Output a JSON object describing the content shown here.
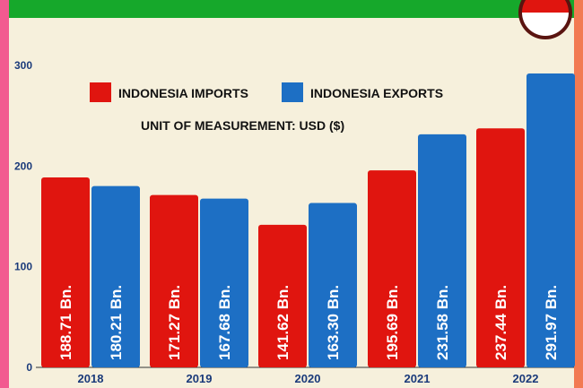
{
  "colors": {
    "imports": "#e0150f",
    "exports": "#1d6fc4",
    "banner": "#16a82b",
    "background": "#f6f0dc",
    "left_edge": "#f25a90",
    "right_edge": "#f27a52"
  },
  "legend": {
    "imports_label": "INDONESIA IMPORTS",
    "exports_label": "INDONESIA EXPORTS",
    "unit": "UNIT OF MEASUREMENT: USD ($)"
  },
  "chart_data": {
    "type": "bar",
    "title": "",
    "xlabel": "",
    "ylabel": "",
    "categories": [
      "2018",
      "2019",
      "2020",
      "2021",
      "2022"
    ],
    "series": [
      {
        "name": "INDONESIA IMPORTS",
        "values": [
          188.71,
          171.27,
          141.62,
          195.69,
          237.44
        ],
        "labels": [
          "188.71 Bn.",
          "171.27 Bn.",
          "141.62 Bn.",
          "195.69 Bn.",
          "237.44 Bn."
        ]
      },
      {
        "name": "INDONESIA EXPORTS",
        "values": [
          180.21,
          167.68,
          163.3,
          231.58,
          291.97
        ],
        "labels": [
          "180.21 Bn.",
          "167.68 Bn.",
          "163.30 Bn.",
          "231.58 Bn.",
          "291.97 Bn."
        ]
      }
    ],
    "yticks": [
      "0",
      "100",
      "200",
      "300"
    ],
    "ylim": [
      0,
      300
    ],
    "grid": false,
    "legend_position": "top-left"
  }
}
